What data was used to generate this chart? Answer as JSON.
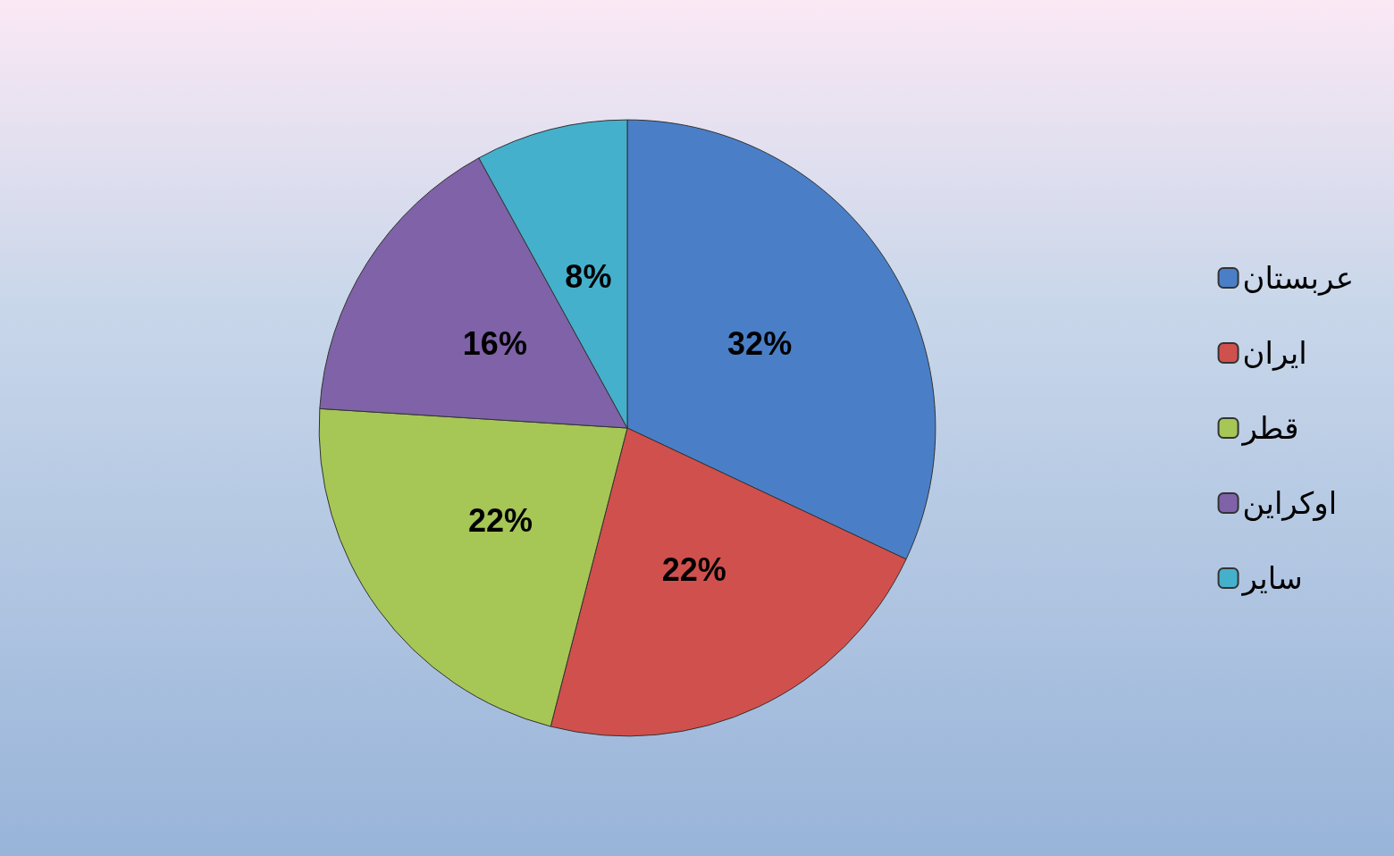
{
  "chart_data": {
    "type": "pie",
    "categories": [
      "عربستان",
      "ایران",
      "قطر",
      "اوکراین",
      "سایر"
    ],
    "values": [
      32,
      22,
      22,
      16,
      8
    ],
    "colors": [
      "#4a7fc8",
      "#d0504d",
      "#a6c656",
      "#7f62a8",
      "#45b0cc"
    ],
    "value_labels": [
      "32%",
      "22%",
      "22%",
      "16%",
      "8%"
    ],
    "legend": "right"
  }
}
